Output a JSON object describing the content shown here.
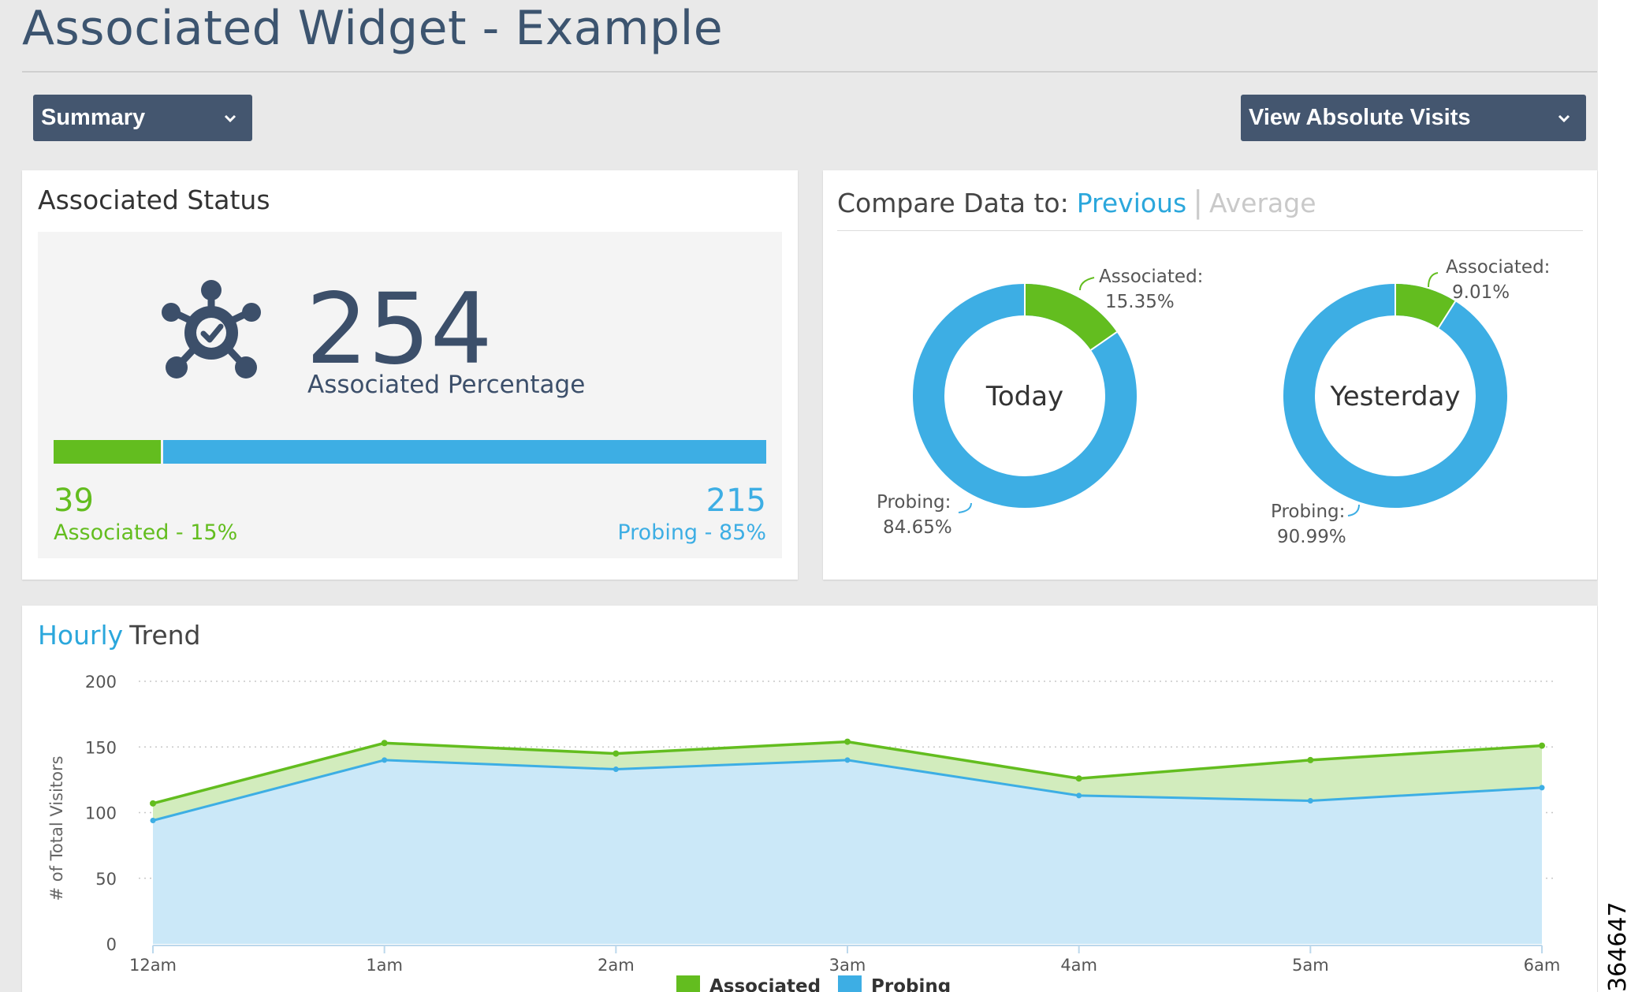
{
  "page": {
    "title": "Associated Widget - Example"
  },
  "toolbar": {
    "summary_dropdown": "Summary",
    "visits_dropdown": "View Absolute Visits"
  },
  "status_card": {
    "title": "Associated Status",
    "icon": "network-hub-check-icon",
    "total": "254",
    "total_label": "Associated Percentage",
    "associated_fraction": 0.15,
    "associated_count": "39",
    "associated_label": "Associated - 15%",
    "probing_count": "215",
    "probing_label": "Probing - 85%"
  },
  "compare_card": {
    "title_prefix": "Compare Data to:",
    "option_previous": "Previous",
    "option_average": "Average",
    "donuts": [
      {
        "center_label": "Today",
        "associated_pct": 15.35,
        "associated_label": "Associated:",
        "associated_value": "15.35%",
        "probing_label": "Probing:",
        "probing_value": "84.65%"
      },
      {
        "center_label": "Yesterday",
        "associated_pct": 9.01,
        "associated_label": "Associated:",
        "associated_value": "9.01%",
        "probing_label": "Probing:",
        "probing_value": "90.99%"
      }
    ]
  },
  "trend_card": {
    "title_highlight": "Hourly",
    "title_rest": "Trend"
  },
  "chart_data": {
    "type": "area",
    "x": [
      "12am",
      "1am",
      "2am",
      "3am",
      "4am",
      "5am",
      "6am"
    ],
    "series": [
      {
        "name": "Associated",
        "values": [
          107,
          153,
          145,
          154,
          126,
          140,
          151
        ],
        "note_stacked_total": true
      },
      {
        "name": "Probing",
        "values": [
          94,
          140,
          133,
          140,
          113,
          109,
          119
        ]
      }
    ],
    "ylabel": "# of Total Visitors",
    "ylim": [
      0,
      200
    ],
    "yticks": [
      0,
      50,
      100,
      150,
      200
    ],
    "grid": true,
    "legend": "bottom",
    "colors": {
      "Associated": "#63bd1f",
      "Probing": "#3daee4"
    }
  },
  "figure_id": "364647",
  "colors": {
    "associated": "#63bd1f",
    "probing": "#3daee4",
    "dropdown_bg": "#44566f",
    "title": "#3c546f"
  }
}
